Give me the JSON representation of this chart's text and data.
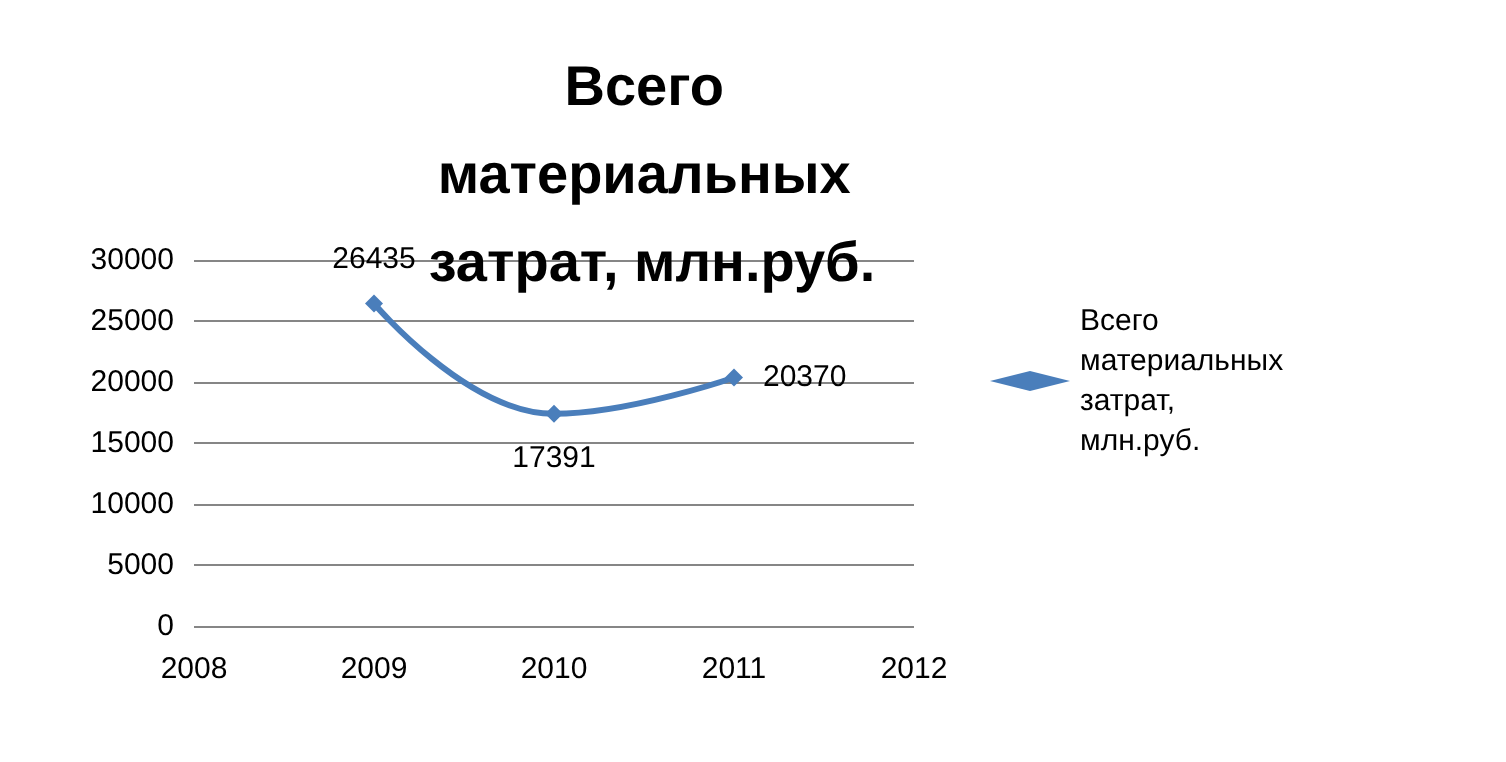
{
  "chart_data": {
    "type": "line",
    "title": "Всего материальных затрат, млн.руб.",
    "x": [
      2009,
      2010,
      2011
    ],
    "series": [
      {
        "name": "Всего материальных затрат, млн.руб.",
        "color": "#4a7ebb",
        "values": [
          26435,
          17391,
          20370
        ]
      }
    ],
    "xlim": [
      2008,
      2012
    ],
    "xticks": [
      2008,
      2009,
      2010,
      2011,
      2012
    ],
    "ylim": [
      0,
      30000
    ],
    "yticks": [
      0,
      5000,
      10000,
      15000,
      20000,
      25000,
      30000
    ],
    "grid": "y",
    "legend": "right",
    "marker": "diamond",
    "line_style": "solid",
    "data_labels": true
  }
}
